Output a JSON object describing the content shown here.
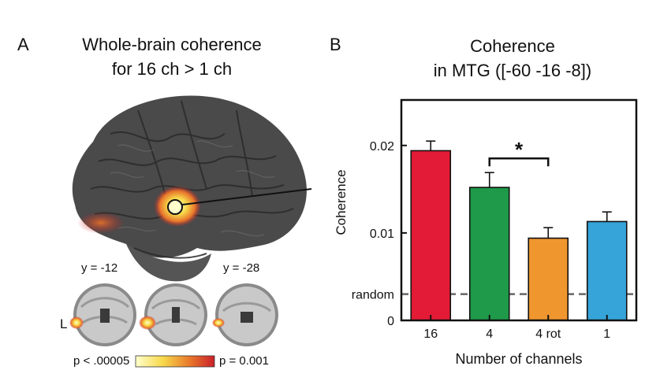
{
  "panel_a": {
    "letter": "A",
    "title_line1": "Whole-brain coherence",
    "title_line2": "for 16 ch > 1 ch",
    "slice_labels": [
      "y = -12",
      "y = -28"
    ],
    "hemisphere_label": "L",
    "colorbar": {
      "low_label": "p < .00005",
      "high_label": "p = 0.001",
      "colors": [
        "#ffffcc",
        "#f7d84a",
        "#e8742a",
        "#c9202a"
      ]
    },
    "brain_color": "#4a4a4a"
  },
  "panel_b": {
    "letter": "B",
    "title_line1": "Coherence",
    "title_line2": "in MTG ([-60 -16 -8])"
  },
  "chart_data": {
    "type": "bar",
    "categories": [
      "16",
      "4",
      "4 rot",
      "1"
    ],
    "values": [
      0.0194,
      0.0152,
      0.0094,
      0.0113
    ],
    "errors": [
      0.0011,
      0.0017,
      0.0012,
      0.0011
    ],
    "colors": [
      "#e31b36",
      "#1f9a4a",
      "#f0962e",
      "#36a4d8"
    ],
    "xlabel": "Number of channels",
    "ylabel": "Coherence",
    "ylim": [
      0,
      0.0252
    ],
    "yticks": [
      {
        "value": 0,
        "label": "0"
      },
      {
        "value": 0.003,
        "label": "random"
      },
      {
        "value": 0.01,
        "label": "0.01"
      },
      {
        "value": 0.02,
        "label": "0.02"
      }
    ],
    "reference_line": {
      "value": 0.003,
      "label": "random"
    },
    "significance": {
      "between": [
        "4",
        "4 rot"
      ],
      "label": "*"
    }
  }
}
